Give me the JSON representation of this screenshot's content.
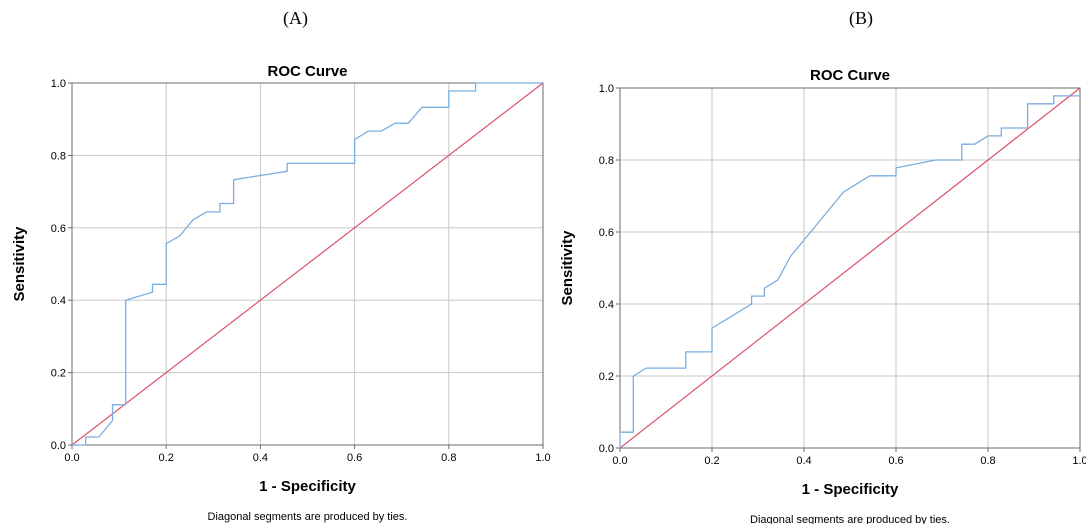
{
  "panels": [
    "(A)",
    "(B)"
  ],
  "chart_data": [
    {
      "type": "line",
      "title": "ROC Curve",
      "xlabel": "1 - Specificity",
      "ylabel": "Sensitivity",
      "xlim": [
        0,
        1
      ],
      "ylim": [
        0,
        1
      ],
      "xticks": [
        "0.0",
        "0.2",
        "0.4",
        "0.6",
        "0.8",
        "1.0"
      ],
      "yticks": [
        "0.0",
        "0.2",
        "0.4",
        "0.6",
        "0.8",
        "1.0"
      ],
      "grid": true,
      "note": "Diagonal segments are produced by ties.",
      "colors": {
        "curve": "#7aaee0",
        "reference": "#e0506a"
      },
      "series": [
        {
          "x": [
            0,
            0.029,
            0.029,
            0.057,
            0.086,
            0.086,
            0.114,
            0.114,
            0.171,
            0.171,
            0.2,
            0.2,
            0.229,
            0.257,
            0.286,
            0.314,
            0.314,
            0.343,
            0.343,
            0.457,
            0.457,
            0.6,
            0.6,
            0.629,
            0.657,
            0.686,
            0.714,
            0.743,
            0.8,
            0.8,
            0.857,
            0.857,
            1.0
          ],
          "y": [
            0,
            0,
            0.022,
            0.022,
            0.067,
            0.111,
            0.111,
            0.4,
            0.422,
            0.444,
            0.444,
            0.556,
            0.578,
            0.622,
            0.644,
            0.644,
            0.667,
            0.667,
            0.733,
            0.756,
            0.778,
            0.778,
            0.844,
            0.867,
            0.867,
            0.889,
            0.889,
            0.933,
            0.933,
            0.978,
            0.978,
            1.0,
            1.0
          ]
        },
        {
          "x": [
            0,
            1
          ],
          "y": [
            0,
            1
          ]
        }
      ]
    },
    {
      "type": "line",
      "title": "ROC Curve",
      "xlabel": "1 - Specificity",
      "ylabel": "Sensitivity",
      "xlim": [
        0,
        1
      ],
      "ylim": [
        0,
        1
      ],
      "xticks": [
        "0.0",
        "0.2",
        "0.4",
        "0.6",
        "0.8",
        "1.0"
      ],
      "yticks": [
        "0.0",
        "0.2",
        "0.4",
        "0.6",
        "0.8",
        "1.0"
      ],
      "grid": true,
      "note": "Diagonal segments are produced by ties.",
      "colors": {
        "curve": "#7aaee0",
        "reference": "#e0506a"
      },
      "series": [
        {
          "x": [
            0,
            0,
            0.029,
            0.029,
            0.057,
            0.143,
            0.143,
            0.2,
            0.2,
            0.286,
            0.286,
            0.314,
            0.314,
            0.343,
            0.371,
            0.486,
            0.543,
            0.6,
            0.6,
            0.686,
            0.743,
            0.743,
            0.771,
            0.8,
            0.829,
            0.829,
            0.886,
            0.886,
            0.943,
            0.943,
            1.0
          ],
          "y": [
            0,
            0.044,
            0.044,
            0.2,
            0.222,
            0.222,
            0.267,
            0.267,
            0.333,
            0.4,
            0.422,
            0.422,
            0.444,
            0.467,
            0.533,
            0.711,
            0.756,
            0.756,
            0.778,
            0.8,
            0.8,
            0.844,
            0.844,
            0.867,
            0.867,
            0.889,
            0.889,
            0.956,
            0.956,
            0.978,
            0.978
          ]
        },
        {
          "x": [
            0,
            1
          ],
          "y": [
            0,
            1
          ]
        }
      ]
    }
  ]
}
